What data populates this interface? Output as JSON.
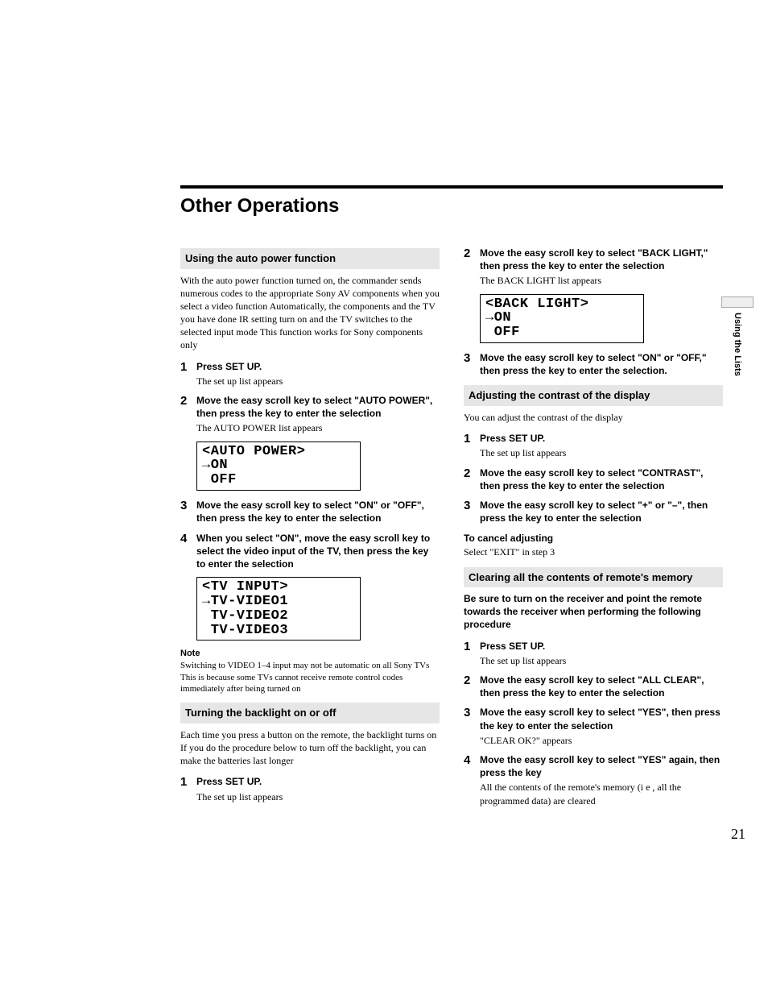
{
  "page_title": "Other Operations",
  "side_tab": "Using the Lists",
  "page_number": "21",
  "left": {
    "section1_heading": "Using the auto power function",
    "section1_intro": "With the auto power function turned on, the commander sends numerous codes to the appropriate Sony AV components when you select a video function Automatically, the components and the TV you have done IR setting turn on and the TV switches to the selected input mode This function works for Sony components only",
    "section1_steps": [
      {
        "n": "1",
        "bold": "Press SET UP.",
        "sub": "The set up list appears"
      },
      {
        "n": "2",
        "bold": "Move the easy scroll key to select \"AUTO POWER\", then press the key to enter the selection",
        "sub": "The AUTO POWER list appears"
      },
      {
        "n": "3",
        "bold": "Move the easy scroll key to select \"ON\" or \"OFF\", then press the key to enter the selection",
        "sub": ""
      },
      {
        "n": "4",
        "bold": "When you select \"ON\", move the easy scroll key to select the video input of the TV, then press the key to enter the selection",
        "sub": ""
      }
    ],
    "lcd1": "<AUTO POWER>\n→ON\n OFF",
    "lcd2": "<TV INPUT>\n→TV-VIDEO1\n TV-VIDEO2\n TV-VIDEO3",
    "note_head": "Note",
    "note_text": "Switching to VIDEO 1–4 input may not be automatic on all Sony TVs This is because some TVs cannot receive remote control codes immediately after being turned on",
    "section2_heading": "Turning the backlight on or off",
    "section2_intro": "Each time you press a button on the remote, the backlight turns on  If you do the procedure below to turn off the backlight, you can make the batteries last longer",
    "section2_steps": [
      {
        "n": "1",
        "bold": "Press SET UP.",
        "sub": "The set up list appears"
      }
    ]
  },
  "right": {
    "cont_steps_a": [
      {
        "n": "2",
        "bold": "Move the easy scroll key to select \"BACK LIGHT,\" then press the key to enter the selection",
        "sub": "The BACK LIGHT list appears"
      }
    ],
    "lcd1": "<BACK LIGHT>\n→ON\n OFF",
    "cont_steps_b": [
      {
        "n": "3",
        "bold": "Move the easy scroll key to select \"ON\" or \"OFF,\" then press the key to enter the selection.",
        "sub": ""
      }
    ],
    "section3_heading": "Adjusting the contrast of the display",
    "section3_intro": "You can adjust the contrast of the display",
    "section3_steps": [
      {
        "n": "1",
        "bold": "Press SET UP.",
        "sub": "The set up list appears"
      },
      {
        "n": "2",
        "bold": "Move the easy scroll key to select \"CONTRAST\", then press the key to enter the selection",
        "sub": ""
      },
      {
        "n": "3",
        "bold": "Move the easy scroll key to select \"+\" or \"–\", then press the key to enter the selection",
        "sub": ""
      }
    ],
    "cancel_head": "To cancel adjusting",
    "cancel_body": "Select \"EXIT\" in step 3",
    "section4_heading": "Clearing all the contents of remote's memory",
    "section4_intro_bold": "Be sure to turn on the receiver and point the remote towards the receiver when performing the following procedure",
    "section4_steps": [
      {
        "n": "1",
        "bold": "Press SET UP.",
        "sub": "The set up list appears"
      },
      {
        "n": "2",
        "bold": "Move the easy scroll key to select \"ALL CLEAR\", then press the key to enter the selection",
        "sub": ""
      },
      {
        "n": "3",
        "bold": "Move the easy scroll key to select \"YES\", then press the key to enter the selection",
        "sub": "\"CLEAR OK?\" appears"
      },
      {
        "n": "4",
        "bold": "Move the easy scroll key to select \"YES\" again, then press the key",
        "sub": "All the contents of the remote's memory (i e , all the programmed data) are cleared"
      }
    ]
  }
}
